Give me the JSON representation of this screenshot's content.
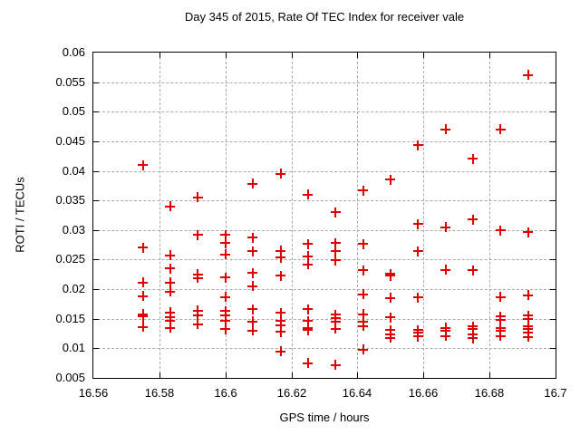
{
  "chart_data": {
    "type": "scatter",
    "title": "Day 345 of 2015, Rate Of TEC Index for receiver vale",
    "xlabel": "GPS time / hours",
    "ylabel": "ROTI / TECUs",
    "xlim": [
      16.56,
      16.7
    ],
    "ylim": [
      0.005,
      0.06
    ],
    "x_ticks": [
      16.56,
      16.58,
      16.6,
      16.62,
      16.64,
      16.66,
      16.68,
      16.7
    ],
    "x_tick_labels": [
      "16.56",
      "16.58",
      "16.6",
      "16.62",
      "16.64",
      "16.66",
      "16.68",
      "16.7"
    ],
    "y_ticks": [
      0.005,
      0.01,
      0.015,
      0.02,
      0.025,
      0.03,
      0.035,
      0.04,
      0.045,
      0.05,
      0.055,
      0.06
    ],
    "y_tick_labels": [
      "0.005",
      "0.01",
      "0.015",
      "0.02",
      "0.025",
      "0.03",
      "0.035",
      "0.04",
      "0.045",
      "0.05",
      "0.055",
      "0.06"
    ],
    "grid": true,
    "legend": "none",
    "marker": {
      "shape": "plus",
      "color": "#e00000"
    },
    "grid_color": "#aaaaaa",
    "points": [
      [
        16.575,
        0.041
      ],
      [
        16.575,
        0.027
      ],
      [
        16.575,
        0.0211
      ],
      [
        16.575,
        0.0188
      ],
      [
        16.575,
        0.0158
      ],
      [
        16.575,
        0.0154
      ],
      [
        16.575,
        0.0136
      ],
      [
        16.5833,
        0.034
      ],
      [
        16.5833,
        0.0257
      ],
      [
        16.5833,
        0.0235
      ],
      [
        16.5833,
        0.0211
      ],
      [
        16.5833,
        0.0196
      ],
      [
        16.5833,
        0.0161
      ],
      [
        16.5833,
        0.0153
      ],
      [
        16.5833,
        0.0147
      ],
      [
        16.5833,
        0.0135
      ],
      [
        16.5917,
        0.0355
      ],
      [
        16.5917,
        0.0292
      ],
      [
        16.5917,
        0.0225
      ],
      [
        16.5917,
        0.0219
      ],
      [
        16.5917,
        0.0164
      ],
      [
        16.5917,
        0.0156
      ],
      [
        16.5917,
        0.0141
      ],
      [
        16.6,
        0.0292
      ],
      [
        16.6,
        0.0278
      ],
      [
        16.6,
        0.0259
      ],
      [
        16.6,
        0.022
      ],
      [
        16.6,
        0.0187
      ],
      [
        16.6,
        0.0163
      ],
      [
        16.6,
        0.0156
      ],
      [
        16.6,
        0.0146
      ],
      [
        16.6,
        0.0132
      ],
      [
        16.6083,
        0.0378
      ],
      [
        16.6083,
        0.0287
      ],
      [
        16.6083,
        0.0264
      ],
      [
        16.6083,
        0.0227
      ],
      [
        16.6083,
        0.0205
      ],
      [
        16.6083,
        0.0166
      ],
      [
        16.6083,
        0.0145
      ],
      [
        16.6083,
        0.013
      ],
      [
        16.6167,
        0.0395
      ],
      [
        16.6167,
        0.0265
      ],
      [
        16.6167,
        0.0253
      ],
      [
        16.6167,
        0.0223
      ],
      [
        16.6167,
        0.016
      ],
      [
        16.6167,
        0.0146
      ],
      [
        16.6167,
        0.0139
      ],
      [
        16.6167,
        0.0128
      ],
      [
        16.6167,
        0.0095
      ],
      [
        16.625,
        0.036
      ],
      [
        16.625,
        0.0276
      ],
      [
        16.625,
        0.0256
      ],
      [
        16.625,
        0.0242
      ],
      [
        16.625,
        0.0166
      ],
      [
        16.625,
        0.0146
      ],
      [
        16.625,
        0.0134
      ],
      [
        16.625,
        0.0131
      ],
      [
        16.625,
        0.0075
      ],
      [
        16.6333,
        0.033
      ],
      [
        16.6333,
        0.0278
      ],
      [
        16.6333,
        0.0264
      ],
      [
        16.6333,
        0.0249
      ],
      [
        16.6333,
        0.0157
      ],
      [
        16.6333,
        0.0151
      ],
      [
        16.6333,
        0.0145
      ],
      [
        16.6333,
        0.0133
      ],
      [
        16.6333,
        0.0072
      ],
      [
        16.6417,
        0.0367
      ],
      [
        16.6417,
        0.0276
      ],
      [
        16.6417,
        0.0232
      ],
      [
        16.6417,
        0.0191
      ],
      [
        16.6417,
        0.0158
      ],
      [
        16.6417,
        0.0145
      ],
      [
        16.6417,
        0.0138
      ],
      [
        16.6417,
        0.0098
      ],
      [
        16.65,
        0.0385
      ],
      [
        16.65,
        0.0226
      ],
      [
        16.65,
        0.0223
      ],
      [
        16.65,
        0.0185
      ],
      [
        16.65,
        0.0152
      ],
      [
        16.65,
        0.0131
      ],
      [
        16.65,
        0.0124
      ],
      [
        16.65,
        0.0118
      ],
      [
        16.6583,
        0.0443
      ],
      [
        16.6583,
        0.031
      ],
      [
        16.6583,
        0.0264
      ],
      [
        16.6583,
        0.0186
      ],
      [
        16.6583,
        0.0131
      ],
      [
        16.6583,
        0.0126
      ],
      [
        16.6583,
        0.012
      ],
      [
        16.6667,
        0.047
      ],
      [
        16.6667,
        0.0305
      ],
      [
        16.6667,
        0.0233
      ],
      [
        16.6667,
        0.0135
      ],
      [
        16.6667,
        0.013
      ],
      [
        16.6667,
        0.0121
      ],
      [
        16.675,
        0.042
      ],
      [
        16.675,
        0.0318
      ],
      [
        16.675,
        0.0232
      ],
      [
        16.675,
        0.0137
      ],
      [
        16.675,
        0.0132
      ],
      [
        16.675,
        0.0124
      ],
      [
        16.675,
        0.0117
      ],
      [
        16.6833,
        0.047
      ],
      [
        16.6833,
        0.0299
      ],
      [
        16.6833,
        0.0187
      ],
      [
        16.6833,
        0.0154
      ],
      [
        16.6833,
        0.0148
      ],
      [
        16.6833,
        0.0135
      ],
      [
        16.6833,
        0.013
      ],
      [
        16.6833,
        0.0121
      ],
      [
        16.6917,
        0.0562
      ],
      [
        16.6917,
        0.0296
      ],
      [
        16.6917,
        0.019
      ],
      [
        16.6917,
        0.0155
      ],
      [
        16.6917,
        0.0149
      ],
      [
        16.6917,
        0.0137
      ],
      [
        16.6917,
        0.0132
      ],
      [
        16.6917,
        0.0127
      ],
      [
        16.6917,
        0.0119
      ]
    ]
  }
}
